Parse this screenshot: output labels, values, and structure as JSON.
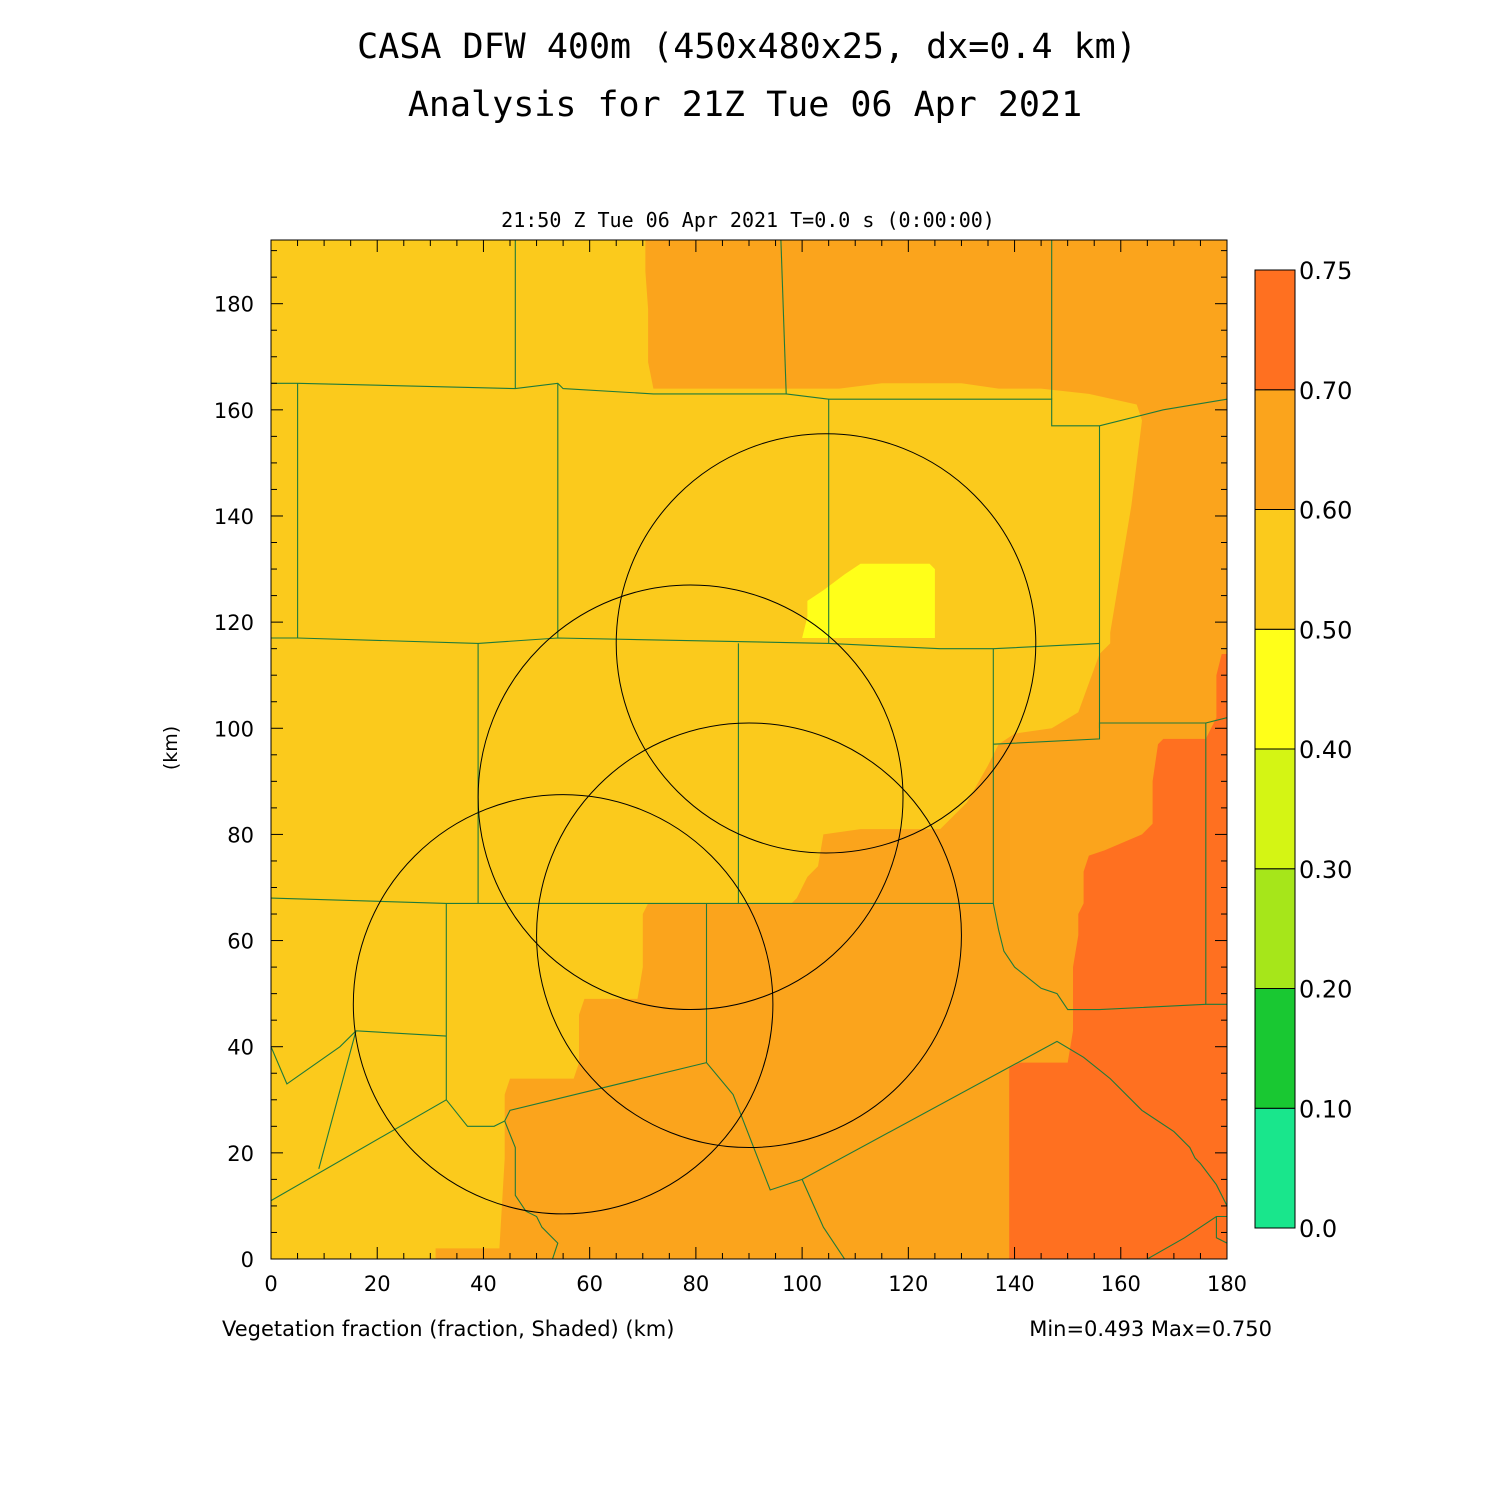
{
  "header": {
    "title_line1": "CASA DFW 400m (450x480x25, dx=0.4 km)",
    "title_line2": "Analysis for 21Z Tue 06 Apr 2021"
  },
  "plot": {
    "time_label": "21:50 Z Tue 06 Apr 2021    T=0.0 s (0:00:00)",
    "field_label": "Vegetation fraction (fraction, Shaded)  (km)",
    "minmax_label": "Min=0.493 Max=0.750",
    "ylabel": "(km)"
  },
  "chart_data": {
    "type": "heatmap",
    "title": "CASA DFW 400m (450x480x25, dx=0.4 km)",
    "subtitle": "Analysis for 21Z Tue 06 Apr 2021",
    "xlabel": "Vegetation fraction (fraction, Shaded)  (km)",
    "ylabel": "(km)",
    "xlim": [
      0,
      180
    ],
    "ylim": [
      0,
      192
    ],
    "x_ticks": [
      0,
      20,
      40,
      60,
      80,
      100,
      120,
      140,
      160,
      180
    ],
    "y_ticks": [
      0,
      20,
      40,
      60,
      80,
      100,
      120,
      140,
      160,
      180
    ],
    "field_min": 0.493,
    "field_max": 0.75,
    "colorbar": {
      "levels": [
        "0.0",
        "0.10",
        "0.20",
        "0.30",
        "0.40",
        "0.50",
        "0.60",
        "0.70",
        "0.75"
      ],
      "colors": [
        "#19e68c",
        "#19c832",
        "#a6e61a",
        "#d4f514",
        "#ffff19",
        "#fbca1c",
        "#fba41c",
        "#ff7020"
      ]
    },
    "regions": [
      {
        "level": "0.60-0.70",
        "color": "#fba41c",
        "polygon": [
          [
            70.5,
            192
          ],
          [
            153,
            192
          ],
          [
            180,
            192
          ],
          [
            180,
            0
          ],
          [
            31,
            0
          ],
          [
            31,
            2
          ],
          [
            43,
            2
          ],
          [
            44,
            19
          ],
          [
            44,
            31
          ],
          [
            45,
            34
          ],
          [
            57,
            34
          ],
          [
            58,
            37
          ],
          [
            58,
            46
          ],
          [
            59,
            49
          ],
          [
            69,
            49
          ],
          [
            70,
            55
          ],
          [
            70,
            65
          ],
          [
            71,
            67
          ],
          [
            98,
            67
          ],
          [
            99,
            68
          ],
          [
            101,
            72
          ],
          [
            103,
            74
          ],
          [
            104,
            80
          ],
          [
            111,
            81
          ],
          [
            126,
            81
          ],
          [
            131,
            86
          ],
          [
            135,
            93
          ],
          [
            137,
            97
          ],
          [
            140,
            99
          ],
          [
            147,
            100
          ],
          [
            152,
            103
          ],
          [
            156,
            114
          ],
          [
            158,
            116
          ],
          [
            158,
            118
          ],
          [
            161,
            136
          ],
          [
            162,
            142
          ],
          [
            163,
            150
          ],
          [
            164,
            158
          ],
          [
            163,
            161
          ],
          [
            154,
            163
          ],
          [
            145,
            164
          ],
          [
            137,
            164
          ],
          [
            130,
            165
          ],
          [
            123,
            165
          ],
          [
            115,
            165
          ],
          [
            107,
            164
          ],
          [
            97,
            164
          ],
          [
            72,
            164
          ],
          [
            71,
            169
          ],
          [
            71,
            179
          ],
          [
            70.5,
            186
          ]
        ]
      },
      {
        "level": "0.70-0.75",
        "color": "#ff7020",
        "polygon": [
          [
            139,
            0
          ],
          [
            139,
            23
          ],
          [
            139,
            36
          ],
          [
            141,
            37
          ],
          [
            150,
            37
          ],
          [
            151,
            43
          ],
          [
            151,
            55
          ],
          [
            152,
            61
          ],
          [
            152,
            65
          ],
          [
            153,
            67
          ],
          [
            153,
            73
          ],
          [
            154,
            76
          ],
          [
            157,
            77
          ],
          [
            164,
            80
          ],
          [
            166,
            82
          ],
          [
            166,
            90
          ],
          [
            167,
            97
          ],
          [
            168,
            98
          ],
          [
            176,
            98
          ],
          [
            177,
            100
          ],
          [
            178,
            102
          ],
          [
            178,
            110
          ],
          [
            179,
            114
          ],
          [
            180,
            114
          ],
          [
            180,
            0
          ]
        ]
      },
      {
        "level": "0.40-0.50",
        "color": "#ffff19",
        "polygon": [
          [
            100,
            117
          ],
          [
            101,
            121
          ],
          [
            101,
            124
          ],
          [
            104,
            126
          ],
          [
            108,
            129
          ],
          [
            111,
            131
          ],
          [
            124,
            131
          ],
          [
            125,
            130
          ],
          [
            125,
            117
          ]
        ]
      }
    ],
    "radar_circles": [
      {
        "center": [
          104.5,
          116
        ],
        "radius": 39.5
      },
      {
        "center": [
          79,
          87
        ],
        "radius": 40
      },
      {
        "center": [
          90,
          61
        ],
        "radius": 40
      },
      {
        "center": [
          55,
          48
        ],
        "radius": 39.5
      }
    ],
    "county_lines": [
      [
        [
          0,
          165
        ],
        [
          5,
          165
        ],
        [
          46,
          164
        ],
        [
          54,
          165
        ],
        [
          55,
          164
        ],
        [
          72,
          163
        ],
        [
          97,
          163
        ],
        [
          105,
          162
        ],
        [
          126,
          162
        ],
        [
          147,
          162
        ],
        [
          147,
          157
        ],
        [
          156,
          157
        ],
        [
          168,
          160
        ],
        [
          180,
          162
        ]
      ],
      [
        [
          46,
          192
        ],
        [
          46,
          164
        ]
      ],
      [
        [
          96,
          192
        ],
        [
          97,
          163
        ]
      ],
      [
        [
          147,
          192
        ],
        [
          147,
          162
        ]
      ],
      [
        [
          5,
          165
        ],
        [
          5,
          117
        ]
      ],
      [
        [
          54,
          165
        ],
        [
          54,
          117
        ]
      ],
      [
        [
          105,
          162
        ],
        [
          105,
          116
        ]
      ],
      [
        [
          156,
          157
        ],
        [
          156,
          116
        ],
        [
          156,
          100
        ]
      ],
      [
        [
          0,
          117
        ],
        [
          5,
          117
        ],
        [
          39,
          116
        ],
        [
          54,
          117
        ],
        [
          105,
          116
        ],
        [
          126,
          115
        ],
        [
          136,
          115
        ],
        [
          156,
          116
        ]
      ],
      [
        [
          39,
          116
        ],
        [
          39,
          67
        ]
      ],
      [
        [
          88,
          116
        ],
        [
          88,
          67
        ]
      ],
      [
        [
          136,
          115
        ],
        [
          136,
          97
        ],
        [
          136,
          67
        ]
      ],
      [
        [
          136,
          97
        ],
        [
          156,
          98
        ],
        [
          156,
          101
        ],
        [
          168,
          101
        ],
        [
          176,
          101
        ],
        [
          176,
          48
        ],
        [
          180,
          48
        ]
      ],
      [
        [
          176,
          101
        ],
        [
          180,
          102
        ]
      ],
      [
        [
          0,
          68
        ],
        [
          33,
          67
        ],
        [
          39,
          67
        ],
        [
          55,
          67
        ],
        [
          70,
          67
        ],
        [
          82,
          67
        ],
        [
          88,
          67
        ],
        [
          136,
          67
        ],
        [
          137,
          62
        ],
        [
          138,
          58
        ],
        [
          140,
          55
        ],
        [
          145,
          51
        ],
        [
          148,
          50
        ],
        [
          150,
          47
        ],
        [
          156,
          47
        ],
        [
          176,
          48
        ]
      ],
      [
        [
          33,
          67
        ],
        [
          33,
          42
        ],
        [
          33,
          30
        ],
        [
          0,
          11
        ]
      ],
      [
        [
          33,
          42
        ],
        [
          16,
          43
        ],
        [
          13,
          40
        ],
        [
          3,
          33
        ],
        [
          0,
          40
        ]
      ],
      [
        [
          16,
          43
        ],
        [
          9,
          17
        ]
      ],
      [
        [
          33,
          30
        ],
        [
          37,
          25
        ],
        [
          42,
          25
        ],
        [
          44,
          26
        ],
        [
          45,
          28
        ],
        [
          82,
          37
        ]
      ],
      [
        [
          82,
          67
        ],
        [
          82,
          37
        ],
        [
          87,
          31
        ],
        [
          94,
          13
        ],
        [
          100,
          15
        ],
        [
          148,
          41
        ],
        [
          153,
          38
        ],
        [
          158,
          34
        ],
        [
          164,
          28
        ],
        [
          170,
          24
        ],
        [
          173,
          21
        ],
        [
          174,
          19
        ],
        [
          175,
          18
        ],
        [
          178,
          14
        ],
        [
          179,
          12
        ],
        [
          180,
          10
        ]
      ],
      [
        [
          100,
          15
        ],
        [
          104,
          6
        ],
        [
          108,
          0
        ]
      ],
      [
        [
          44,
          26
        ],
        [
          46,
          21
        ],
        [
          46,
          12
        ],
        [
          48,
          9
        ],
        [
          50,
          8
        ],
        [
          51,
          6
        ],
        [
          54,
          3
        ],
        [
          53,
          0
        ]
      ],
      [
        [
          165,
          0
        ],
        [
          172,
          4
        ],
        [
          178,
          8
        ],
        [
          180,
          8
        ]
      ],
      [
        [
          178,
          8
        ],
        [
          178,
          4
        ],
        [
          180,
          3
        ]
      ]
    ]
  }
}
